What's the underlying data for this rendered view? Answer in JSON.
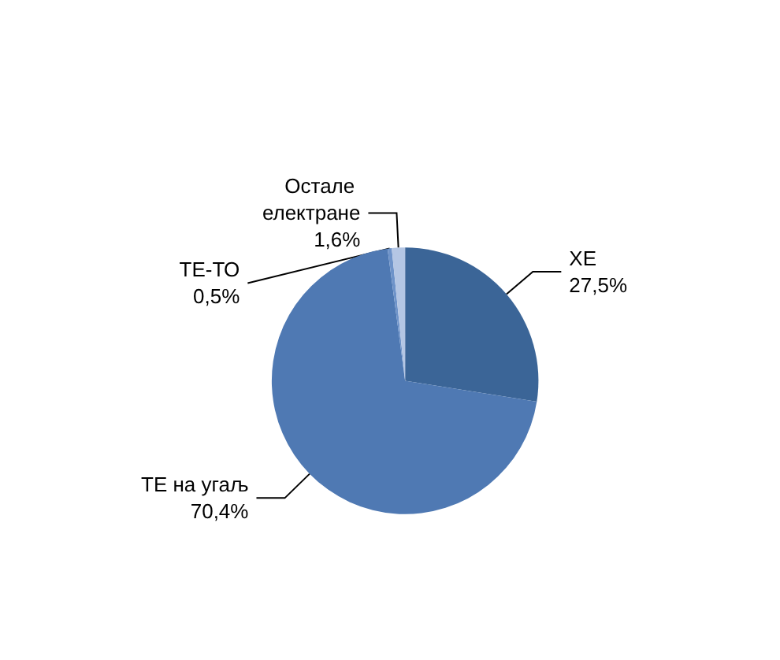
{
  "chart_data": {
    "type": "pie",
    "categories": [
      "ХЕ",
      "ТЕ на угаљ",
      "ТЕ-ТО",
      "Остале електране"
    ],
    "values": [
      27.5,
      70.4,
      0.5,
      1.6
    ],
    "value_labels": [
      "27,5%",
      "70,4%",
      "0,5%",
      "1,6%"
    ],
    "colors": [
      "#3b6597",
      "#4f79b3",
      "#6e93c9",
      "#b4c6e4"
    ],
    "legend": false
  }
}
